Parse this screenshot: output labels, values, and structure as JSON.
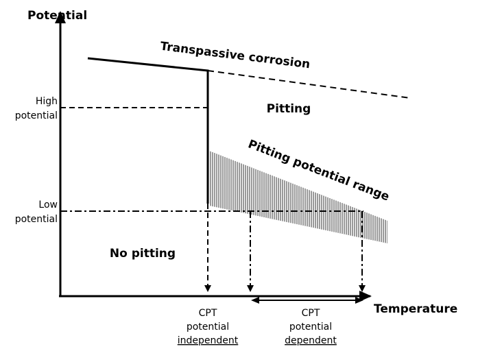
{
  "axes": {
    "y_label": "Potential",
    "x_label": "Temperature"
  },
  "levels": {
    "high": [
      "High",
      "potential"
    ],
    "low": [
      "Low",
      "potential"
    ]
  },
  "regions": {
    "transpassive": "Transpassive corrosion",
    "pitting": "Pitting",
    "range": "Pitting potential range",
    "no_pitting": "No pitting"
  },
  "cpt": {
    "independent": [
      "CPT",
      "potential",
      "independent"
    ],
    "dependent": [
      "CPT",
      "potential",
      "dependent"
    ]
  }
}
